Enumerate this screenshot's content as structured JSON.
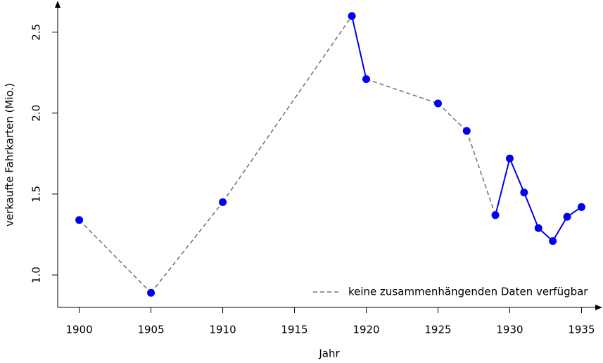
{
  "chart_data": {
    "type": "line",
    "xlabel": "Jahr",
    "ylabel": "verkaufte Fahrkarten (Mio.)",
    "x": [
      1900,
      1905,
      1910,
      1919,
      1920,
      1925,
      1927,
      1929,
      1930,
      1931,
      1932,
      1933,
      1934,
      1935
    ],
    "values": [
      1.34,
      0.89,
      1.45,
      2.6,
      2.21,
      2.06,
      1.89,
      1.37,
      1.72,
      1.51,
      1.29,
      1.21,
      1.36,
      1.42
    ],
    "color": "#0000ee",
    "gap_color": "#777777",
    "gap_legend": "keine zusammenhängenden Daten verfügbar",
    "legend_position": "bottom-right",
    "xlim": [
      1898.5,
      1936.4
    ],
    "ylim": [
      0.8,
      2.69
    ],
    "xticks": [
      1900,
      1905,
      1910,
      1915,
      1920,
      1925,
      1930,
      1935
    ],
    "yticks": [
      {
        "value": 1,
        "label": "1.0"
      },
      1.5,
      {
        "value": 2,
        "label": "2.0"
      },
      2.5
    ]
  }
}
